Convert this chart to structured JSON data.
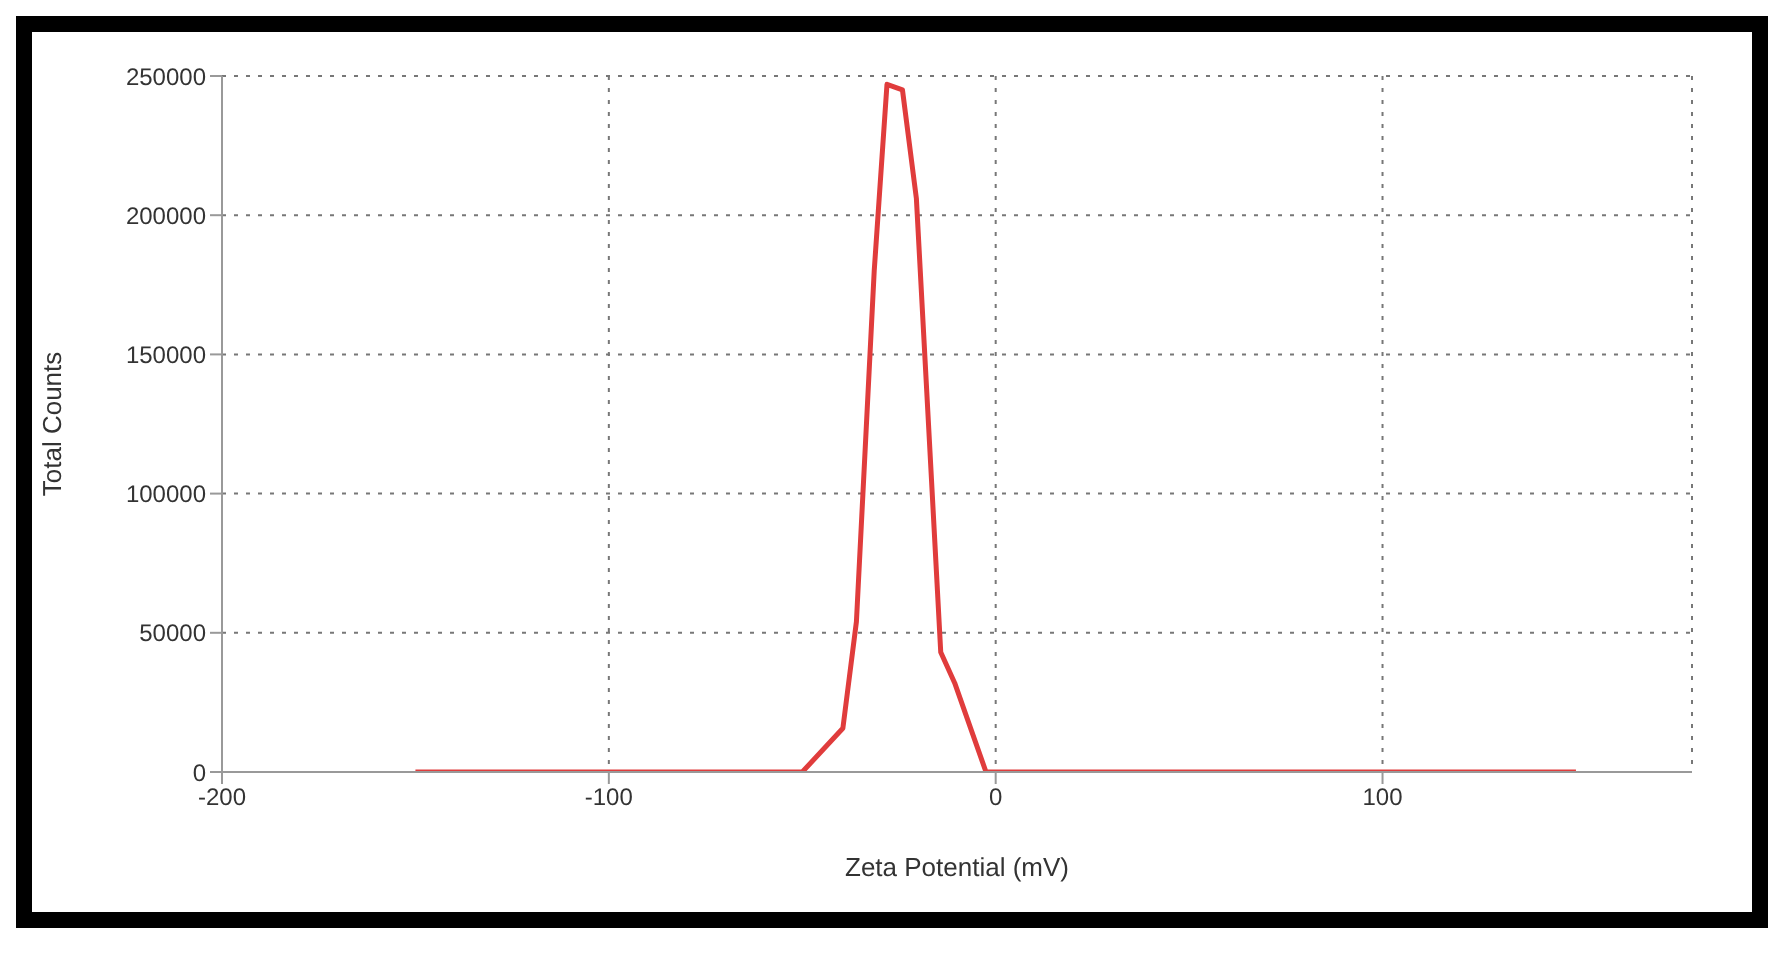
{
  "chart_data": {
    "type": "line",
    "xlabel": "Zeta Potential (mV)",
    "ylabel": "Total Counts",
    "series": [
      {
        "color": "#e03c3c",
        "x": [
          -150,
          -50,
          -39.5,
          -36,
          -31.4,
          -28.1,
          -24.1,
          -20.5,
          -14.2,
          -10.6,
          -2.5,
          150
        ],
        "values": [
          0,
          0,
          15700,
          54000,
          180000,
          247000,
          245000,
          206000,
          43000,
          32000,
          0,
          0
        ]
      }
    ],
    "xlim": [
      -200,
      180
    ],
    "xticks": [
      -200,
      -100,
      0,
      100
    ],
    "ylim": [
      0,
      250000
    ],
    "yticks": [
      0,
      50000,
      100000,
      150000,
      200000,
      250000
    ],
    "grid": true,
    "legend": false,
    "marker": "none",
    "line_style": "solid"
  }
}
